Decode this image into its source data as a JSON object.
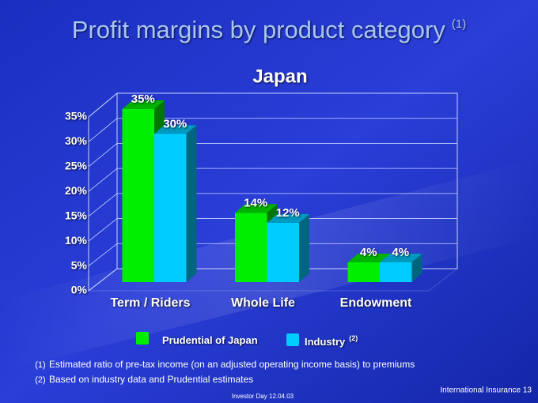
{
  "chart_data": {
    "type": "bar3d",
    "title": "Profit margins by product category",
    "title_note": "(1)",
    "subtitle": "Japan",
    "categories": [
      "Term / Riders",
      "Whole Life",
      "Endowment"
    ],
    "series": [
      {
        "name": "Prudential of Japan",
        "color": "#00ee00",
        "values": [
          35,
          14,
          4
        ],
        "value_labels": [
          "35%",
          "14%",
          "4%"
        ]
      },
      {
        "name": "Industry",
        "note": "(2)",
        "color": "#00ccff",
        "values": [
          30,
          12,
          4
        ],
        "value_labels": [
          "30%",
          "12%",
          "4%"
        ]
      }
    ],
    "ylim": [
      0,
      35
    ],
    "yticks": [
      {
        "value": 0,
        "label": "0%"
      },
      {
        "value": 5,
        "label": "5%"
      },
      {
        "value": 10,
        "label": "10%"
      },
      {
        "value": 15,
        "label": "15%"
      },
      {
        "value": 20,
        "label": "20%"
      },
      {
        "value": 25,
        "label": "25%"
      },
      {
        "value": 30,
        "label": "30%"
      },
      {
        "value": 35,
        "label": "35%"
      }
    ],
    "grid": true
  },
  "footnotes": [
    {
      "marker": "(1)",
      "text": "Estimated ratio of pre-tax income (on an adjusted operating income basis) to premiums"
    },
    {
      "marker": "(2)",
      "text": "Based on industry data and Prudential estimates"
    }
  ],
  "footer": {
    "event": "Investor Day 12.04.03",
    "section": "International Insurance 13"
  }
}
